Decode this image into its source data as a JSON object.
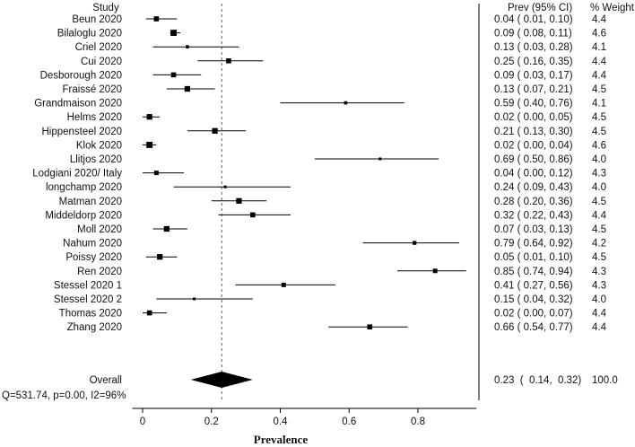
{
  "chart_data": {
    "type": "forest",
    "xlabel": "Prevalence",
    "xlim": [
      -0.03,
      0.97
    ],
    "xticks": [
      "0",
      "0.2",
      "0.4",
      "0.6",
      "0.8"
    ],
    "xtick_values": [
      0,
      0.2,
      0.4,
      0.6,
      0.8
    ],
    "reference_line": 0.23,
    "reference_line_style": "dashed",
    "headers": {
      "study": "Study",
      "ci": "Prev (95% CI)",
      "weight": "% Weight"
    },
    "studies": [
      {
        "name": "Beun 2020",
        "prev": 0.04,
        "lo": 0.01,
        "hi": 0.1,
        "weight": 4.4,
        "ci_text": "0.04  (  0.01,  0.10)",
        "weight_text": "4.4"
      },
      {
        "name": "Bilaloglu 2020",
        "prev": 0.09,
        "lo": 0.08,
        "hi": 0.11,
        "weight": 4.6,
        "ci_text": "0.09  (  0.08,  0.11)",
        "weight_text": "4.6"
      },
      {
        "name": "Criel 2020",
        "prev": 0.13,
        "lo": 0.03,
        "hi": 0.28,
        "weight": 4.1,
        "ci_text": "0.13  (  0.03,  0.28)",
        "weight_text": "4.1"
      },
      {
        "name": "Cui 2020",
        "prev": 0.25,
        "lo": 0.16,
        "hi": 0.35,
        "weight": 4.4,
        "ci_text": "0.25  (  0.16,  0.35)",
        "weight_text": "4.4"
      },
      {
        "name": "Desborough 2020",
        "prev": 0.09,
        "lo": 0.03,
        "hi": 0.17,
        "weight": 4.4,
        "ci_text": "0.09  (  0.03,  0.17)",
        "weight_text": "4.4"
      },
      {
        "name": "Fraissé 2020",
        "prev": 0.13,
        "lo": 0.07,
        "hi": 0.21,
        "weight": 4.5,
        "ci_text": "0.13  (  0.07,  0.21)",
        "weight_text": "4.5"
      },
      {
        "name": "Grandmaison 2020",
        "prev": 0.59,
        "lo": 0.4,
        "hi": 0.76,
        "weight": 4.1,
        "ci_text": "0.59  (  0.40,  0.76)",
        "weight_text": "4.1"
      },
      {
        "name": "Helms 2020",
        "prev": 0.02,
        "lo": 0.0,
        "hi": 0.05,
        "weight": 4.5,
        "ci_text": "0.02  (  0.00,  0.05)",
        "weight_text": "4.5"
      },
      {
        "name": "Hippensteel 2020",
        "prev": 0.21,
        "lo": 0.13,
        "hi": 0.3,
        "weight": 4.5,
        "ci_text": "0.21  (  0.13,  0.30)",
        "weight_text": "4.5"
      },
      {
        "name": "Klok 2020",
        "prev": 0.02,
        "lo": 0.0,
        "hi": 0.04,
        "weight": 4.6,
        "ci_text": "0.02  (  0.00,  0.04)",
        "weight_text": "4.6"
      },
      {
        "name": "Llitjos 2020",
        "prev": 0.69,
        "lo": 0.5,
        "hi": 0.86,
        "weight": 4.0,
        "ci_text": "0.69  (  0.50,  0.86)",
        "weight_text": "4.0"
      },
      {
        "name": "Lodgiani 2020/ Italy",
        "prev": 0.04,
        "lo": 0.0,
        "hi": 0.12,
        "weight": 4.3,
        "ci_text": "0.04  (  0.00,  0.12)",
        "weight_text": "4.3"
      },
      {
        "name": "longchamp 2020",
        "prev": 0.24,
        "lo": 0.09,
        "hi": 0.43,
        "weight": 4.0,
        "ci_text": "0.24  (  0.09,  0.43)",
        "weight_text": "4.0"
      },
      {
        "name": "Matman 2020",
        "prev": 0.28,
        "lo": 0.2,
        "hi": 0.36,
        "weight": 4.5,
        "ci_text": "0.28  (  0.20,  0.36)",
        "weight_text": "4.5"
      },
      {
        "name": "Middeldorp 2020",
        "prev": 0.32,
        "lo": 0.22,
        "hi": 0.43,
        "weight": 4.4,
        "ci_text": "0.32  (  0.22,  0.43)",
        "weight_text": "4.4"
      },
      {
        "name": "Moll 2020",
        "prev": 0.07,
        "lo": 0.03,
        "hi": 0.13,
        "weight": 4.5,
        "ci_text": "0.07  (  0.03,  0.13)",
        "weight_text": "4.5"
      },
      {
        "name": "Nahum 2020",
        "prev": 0.79,
        "lo": 0.64,
        "hi": 0.92,
        "weight": 4.2,
        "ci_text": "0.79  (  0.64,  0.92)",
        "weight_text": "4.2"
      },
      {
        "name": "Poissy 2020",
        "prev": 0.05,
        "lo": 0.01,
        "hi": 0.1,
        "weight": 4.5,
        "ci_text": "0.05  (  0.01,  0.10)",
        "weight_text": "4.5"
      },
      {
        "name": "Ren 2020",
        "prev": 0.85,
        "lo": 0.74,
        "hi": 0.94,
        "weight": 4.3,
        "ci_text": "0.85  (  0.74,  0.94)",
        "weight_text": "4.3"
      },
      {
        "name": "Stessel 2020 1",
        "prev": 0.41,
        "lo": 0.27,
        "hi": 0.56,
        "weight": 4.3,
        "ci_text": "0.41  (  0.27,  0.56)",
        "weight_text": "4.3"
      },
      {
        "name": "Stessel 2020 2",
        "prev": 0.15,
        "lo": 0.04,
        "hi": 0.32,
        "weight": 4.0,
        "ci_text": "0.15  (  0.04,  0.32)",
        "weight_text": "4.0"
      },
      {
        "name": "Thomas 2020",
        "prev": 0.02,
        "lo": 0.0,
        "hi": 0.07,
        "weight": 4.4,
        "ci_text": "0.02  (  0.00,  0.07)",
        "weight_text": "4.4"
      },
      {
        "name": "Zhang 2020",
        "prev": 0.66,
        "lo": 0.54,
        "hi": 0.77,
        "weight": 4.4,
        "ci_text": "0.66  (  0.54,  0.77)",
        "weight_text": "4.4"
      }
    ],
    "overall": {
      "name": "Overall",
      "prev": 0.23,
      "lo": 0.14,
      "hi": 0.32,
      "weight": 100.0,
      "ci_text": "0.23  (  0.14,  0.32)",
      "weight_text": "100.0"
    },
    "heterogeneity": "Q=531.74, p=0.00, I2=96%"
  }
}
